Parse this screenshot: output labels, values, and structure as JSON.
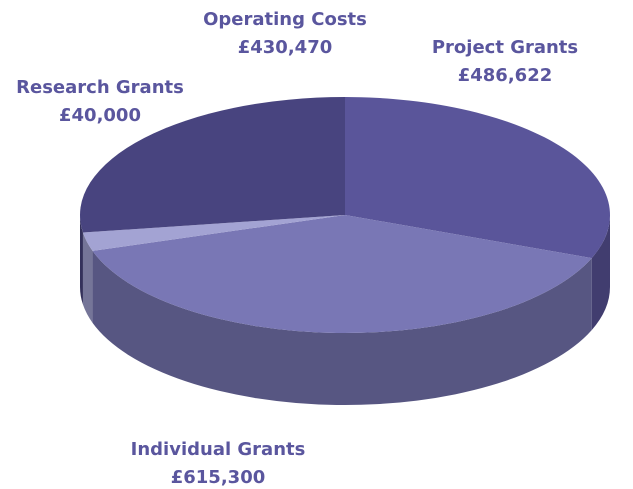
{
  "chart_data": {
    "type": "pie",
    "categories": [
      "Project Grants",
      "Individual Grants",
      "Research Grants",
      "Operating Costs"
    ],
    "values": [
      486622,
      615300,
      40000,
      430470
    ],
    "value_labels": [
      "£486,622",
      "£615,300",
      "£40,000",
      "£430,470"
    ],
    "colors": [
      "#5a559a",
      "#7977b5",
      "#a3a3d3",
      "#48447f"
    ]
  }
}
